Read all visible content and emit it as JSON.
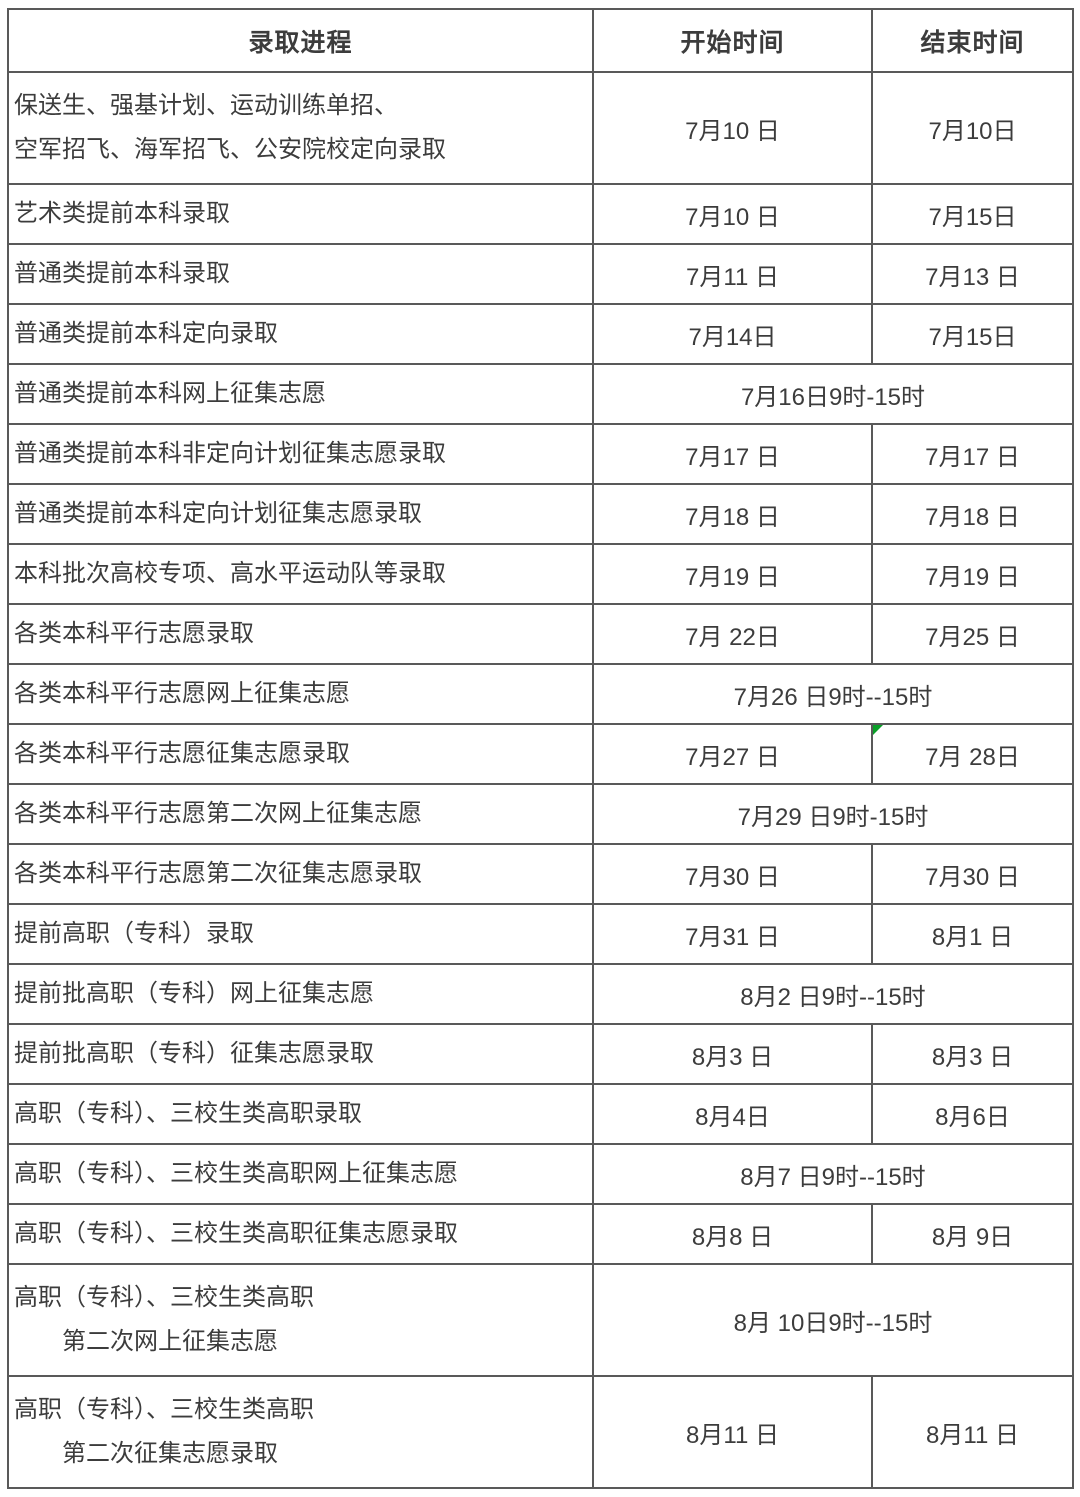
{
  "colors": {
    "text": "#3c3c3c",
    "border": "#595959",
    "comment_marker_green": "#0aa028"
  },
  "table": {
    "headers": {
      "process": "录取进程",
      "start": "开始时间",
      "end": "结束时间"
    },
    "rows": [
      {
        "process": "保送生、强基计划、运动训练单招、\n空军招飞、海军招飞、公安院校定向录取",
        "start": "7月10 日",
        "end": "7月10日"
      },
      {
        "process": "艺术类提前本科录取",
        "start": "7月10 日",
        "end": "7月15日"
      },
      {
        "process": "普通类提前本科录取",
        "start": "7月11 日",
        "end": "7月13 日"
      },
      {
        "process": "普通类提前本科定向录取",
        "start": "7月14日",
        "end": "7月15日"
      },
      {
        "process": "普通类提前本科网上征集志愿",
        "time": "7月16日9时-15时"
      },
      {
        "process": "普通类提前本科非定向计划征集志愿录取",
        "start": "7月17 日",
        "end": "7月17 日"
      },
      {
        "process": "普通类提前本科定向计划征集志愿录取",
        "start": "7月18 日",
        "end": "7月18 日"
      },
      {
        "process": "本科批次高校专项、高水平运动队等录取",
        "start": "7月19 日",
        "end": "7月19 日"
      },
      {
        "process": "各类本科平行志愿录取",
        "start": "7月 22日",
        "end": "7月25 日"
      },
      {
        "process": "各类本科平行志愿网上征集志愿",
        "time": "7月26 日9时--15时"
      },
      {
        "process": "各类本科平行志愿征集志愿录取",
        "start": "7月27 日",
        "end": "7月 28日",
        "end_marker": true
      },
      {
        "process": "各类本科平行志愿第二次网上征集志愿",
        "time": "7月29 日9时-15时"
      },
      {
        "process": "各类本科平行志愿第二次征集志愿录取",
        "start": "7月30 日",
        "end": "7月30 日"
      },
      {
        "process": "提前高职（专科）录取",
        "start": "7月31 日",
        "end": "8月1 日"
      },
      {
        "process": "提前批高职（专科）网上征集志愿",
        "time": "8月2 日9时--15时"
      },
      {
        "process": "提前批高职（专科）征集志愿录取",
        "start": "8月3 日",
        "end": "8月3 日"
      },
      {
        "process": "高职（专科）、三校生类高职录取",
        "start": "8月4日",
        "end": "8月6日"
      },
      {
        "process": "高职（专科）、三校生类高职网上征集志愿",
        "time": "8月7 日9时--15时"
      },
      {
        "process": "高职（专科）、三校生类高职征集志愿录取",
        "start": "8月8 日",
        "end": "8月 9日"
      },
      {
        "process": "高职（专科）、三校生类高职\n　　第二次网上征集志愿",
        "time": "8月 10日9时--15时"
      },
      {
        "process": "高职（专科）、三校生类高职\n　　第二次征集志愿录取",
        "start": "8月11 日",
        "end": "8月11 日"
      }
    ]
  }
}
